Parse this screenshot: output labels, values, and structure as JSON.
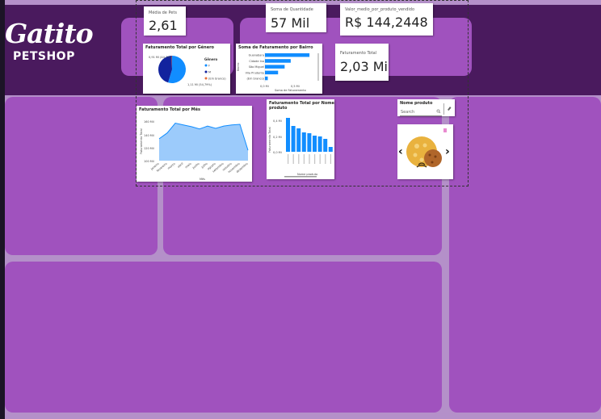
{
  "logo": {
    "main": "Gatito",
    "sub": "PETSHOP"
  },
  "kpis": {
    "media_pets": {
      "title": "Média de Pets",
      "value": "2,61"
    },
    "quantidade": {
      "title": "Soma de Quantidade",
      "value": "57 Mil"
    },
    "valor_medio": {
      "title": "Valor_medio_por_produto_vendido",
      "value": "R$ 144,2448"
    },
    "faturamento_total": {
      "title": "Faturamento Total",
      "value": "2,03 Mi"
    }
  },
  "pie": {
    "title": "Faturamento Total por Gênero",
    "legend_title": "Gênero",
    "legend": [
      "F",
      "M",
      "(Em branco)"
    ],
    "label_left": "0,91 Mi (44,7%)",
    "label_right": "1,11 Mi (54,79%)",
    "colors": [
      "#118dff",
      "#12239e",
      "#e66c37"
    ]
  },
  "bairro": {
    "title": "Soma de Faturamento por Bairro",
    "ylabel": "Bairro",
    "xlabel": "Soma de Faturamento",
    "xticks": [
      "0,0 Mi",
      "0,5 Mi"
    ]
  },
  "mes": {
    "title": "Faturamento Total por Mês",
    "ylabel": "Faturamento Total",
    "xlabel": "Mês",
    "yticks": [
      "160 Mil",
      "140 Mil",
      "120 Mil",
      "100 Mil"
    ]
  },
  "produto": {
    "title_line1": "Faturamento Total por Nome",
    "title_line2": "produto",
    "ylabel": "Faturamento Total",
    "xlabel": "Nome produto",
    "yticks": [
      "0,4 Mi",
      "0,2 Mi",
      "0,0 Mi"
    ]
  },
  "slicer": {
    "title": "Nome produto",
    "placeholder": "Search"
  },
  "chart_data": [
    {
      "type": "pie",
      "title": "Faturamento Total por Gênero",
      "categories": [
        "F",
        "M",
        "(Em branco)"
      ],
      "values": [
        1.11,
        0.91,
        0.01
      ],
      "labels": [
        "1,11 Mi (54,79%)",
        "0,91 Mi (44,7%)",
        ""
      ]
    },
    {
      "type": "bar",
      "title": "Soma de Faturamento por Bairro",
      "categories": [
        "Guanabara",
        "Cidade Ina",
        "São Miguel",
        "Vila Prudente",
        "(Em branco)"
      ],
      "values": [
        0.95,
        0.55,
        0.42,
        0.28,
        0.06
      ],
      "xlim": [
        0,
        1.0
      ]
    },
    {
      "type": "area",
      "title": "Faturamento Total por Mês",
      "categories": [
        "janeiro",
        "fevereiro",
        "março",
        "abril",
        "maio",
        "junho",
        "julho",
        "agosto",
        "setembro",
        "outubro",
        "novembro",
        "dezembro"
      ],
      "values": [
        138,
        148,
        165,
        162,
        159,
        155,
        160,
        156,
        160,
        162,
        163,
        118
      ],
      "ylim": [
        100,
        170
      ]
    },
    {
      "type": "bar",
      "title": "Faturamento Total por Nome produto",
      "categories": [
        "",
        "",
        "",
        "",
        "",
        "",
        "",
        "",
        ""
      ],
      "values": [
        0.42,
        0.32,
        0.29,
        0.24,
        0.23,
        0.2,
        0.19,
        0.16,
        0.06
      ],
      "ylim": [
        0,
        0.45
      ]
    }
  ]
}
